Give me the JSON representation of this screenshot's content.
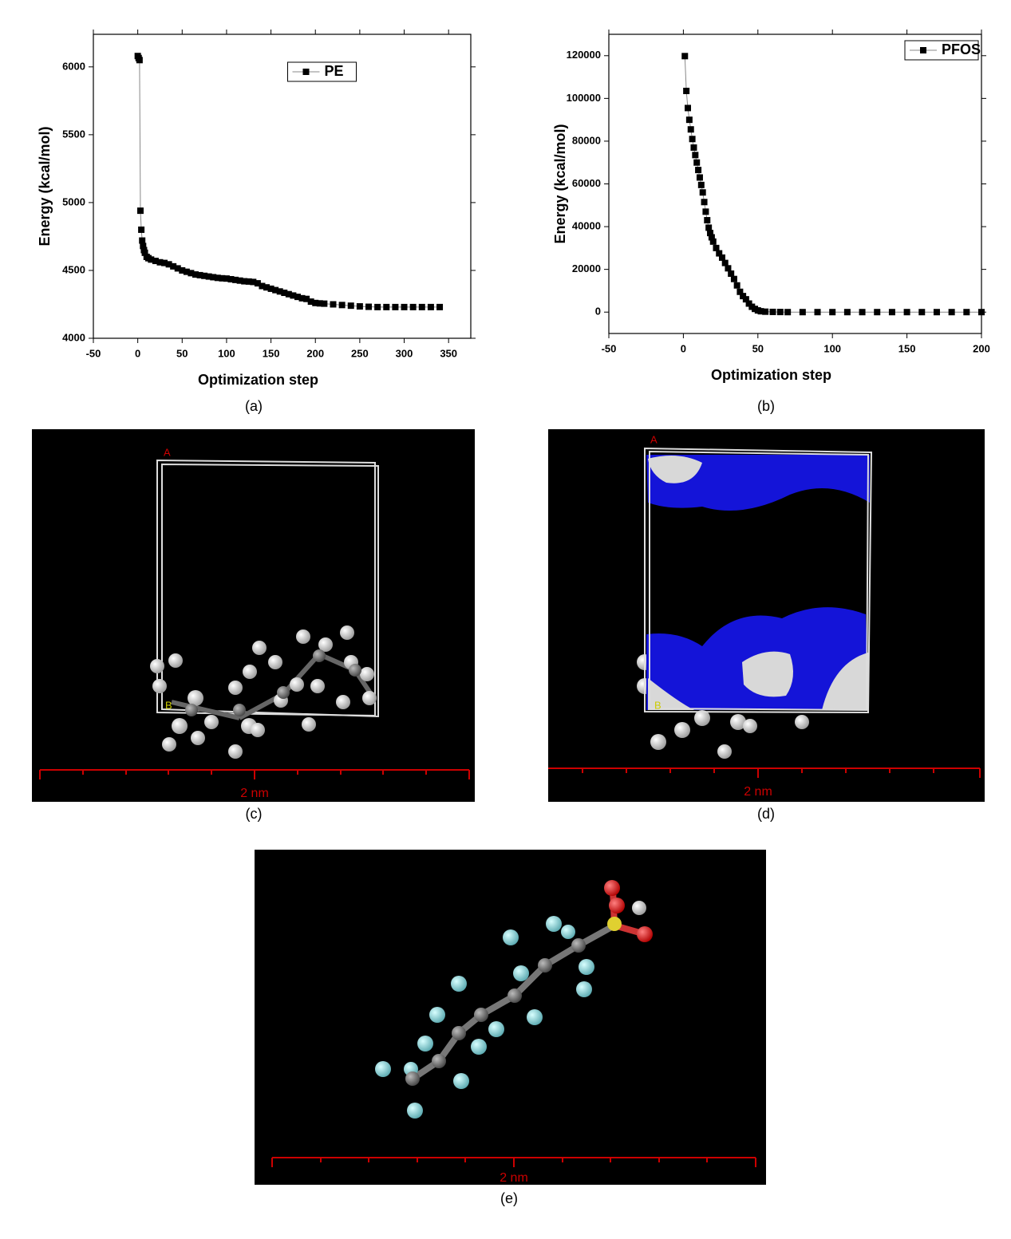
{
  "chart_data": [
    {
      "type": "line",
      "marker": "square",
      "x_label": "Optimization step",
      "y_label": "Energy (kcal/mol)",
      "x": [
        0,
        1,
        2,
        3,
        4,
        5,
        6,
        7,
        8,
        10,
        12,
        15,
        20,
        25,
        30,
        35,
        40,
        45,
        50,
        55,
        60,
        65,
        70,
        75,
        80,
        85,
        90,
        95,
        100,
        105,
        110,
        115,
        120,
        125,
        130,
        135,
        140,
        145,
        150,
        155,
        160,
        165,
        170,
        175,
        180,
        185,
        190,
        195,
        200,
        205,
        210,
        220,
        230,
        240,
        250,
        260,
        270,
        280,
        290,
        300,
        310,
        320,
        330,
        340
      ],
      "series": [
        {
          "name": "PE",
          "color": "#000000",
          "values": [
            6080,
            6065,
            6050,
            4940,
            4800,
            4720,
            4680,
            4650,
            4630,
            4600,
            4590,
            4580,
            4570,
            4560,
            4555,
            4545,
            4530,
            4515,
            4500,
            4490,
            4480,
            4470,
            4465,
            4460,
            4455,
            4450,
            4445,
            4442,
            4440,
            4435,
            4430,
            4425,
            4420,
            4418,
            4415,
            4405,
            4385,
            4375,
            4365,
            4355,
            4345,
            4335,
            4325,
            4315,
            4305,
            4295,
            4290,
            4270,
            4260,
            4257,
            4255,
            4250,
            4245,
            4240,
            4235,
            4232,
            4230,
            4230,
            4230,
            4230,
            4230,
            4230,
            4230,
            4230
          ]
        }
      ],
      "xlim": [
        -50,
        375
      ],
      "xticks": [
        -50,
        0,
        50,
        100,
        150,
        200,
        250,
        300,
        350
      ],
      "ylim": [
        4000,
        6240
      ],
      "yticks": [
        4000,
        4500,
        5000,
        5500,
        6000
      ],
      "legend": "upper center"
    },
    {
      "type": "line",
      "marker": "square",
      "x_label": "Optimization step",
      "y_label": "Energy (kcal/mol)",
      "x": [
        1,
        2,
        3,
        4,
        5,
        6,
        7,
        8,
        9,
        10,
        11,
        12,
        13,
        14,
        15,
        16,
        17,
        18,
        19,
        20,
        22,
        24,
        26,
        28,
        30,
        32,
        34,
        36,
        38,
        40,
        42,
        44,
        46,
        48,
        50,
        52,
        55,
        60,
        65,
        70,
        80,
        90,
        100,
        110,
        120,
        130,
        140,
        150,
        160,
        170,
        180,
        190,
        200
      ],
      "series": [
        {
          "name": "PFOS",
          "color": "#000000",
          "values": [
            119800,
            103500,
            95500,
            90000,
            85500,
            81000,
            77000,
            73500,
            70000,
            66500,
            63000,
            59500,
            56000,
            51500,
            47000,
            43000,
            39500,
            37000,
            35000,
            33000,
            30000,
            27500,
            25500,
            23000,
            20500,
            18000,
            15500,
            12500,
            9500,
            7500,
            6000,
            4000,
            2500,
            1500,
            800,
            400,
            200,
            100,
            50,
            0,
            0,
            0,
            0,
            0,
            0,
            0,
            0,
            0,
            0,
            0,
            0,
            0,
            0
          ]
        }
      ],
      "xlim": [
        -50,
        200
      ],
      "xticks": [
        -50,
        0,
        50,
        100,
        150,
        200
      ],
      "ylim": [
        -10000,
        130000
      ],
      "yticks": [
        0,
        20000,
        40000,
        60000,
        80000,
        100000,
        120000
      ],
      "legend": "upper right"
    }
  ],
  "panels": {
    "captions": [
      "(a)",
      "(b)",
      "(c)",
      "(d)",
      "(e)"
    ],
    "scale_labels": [
      "2 nm",
      "2 nm",
      "2 nm"
    ],
    "cell_letters": [
      "A",
      "B",
      "A",
      "B"
    ]
  }
}
